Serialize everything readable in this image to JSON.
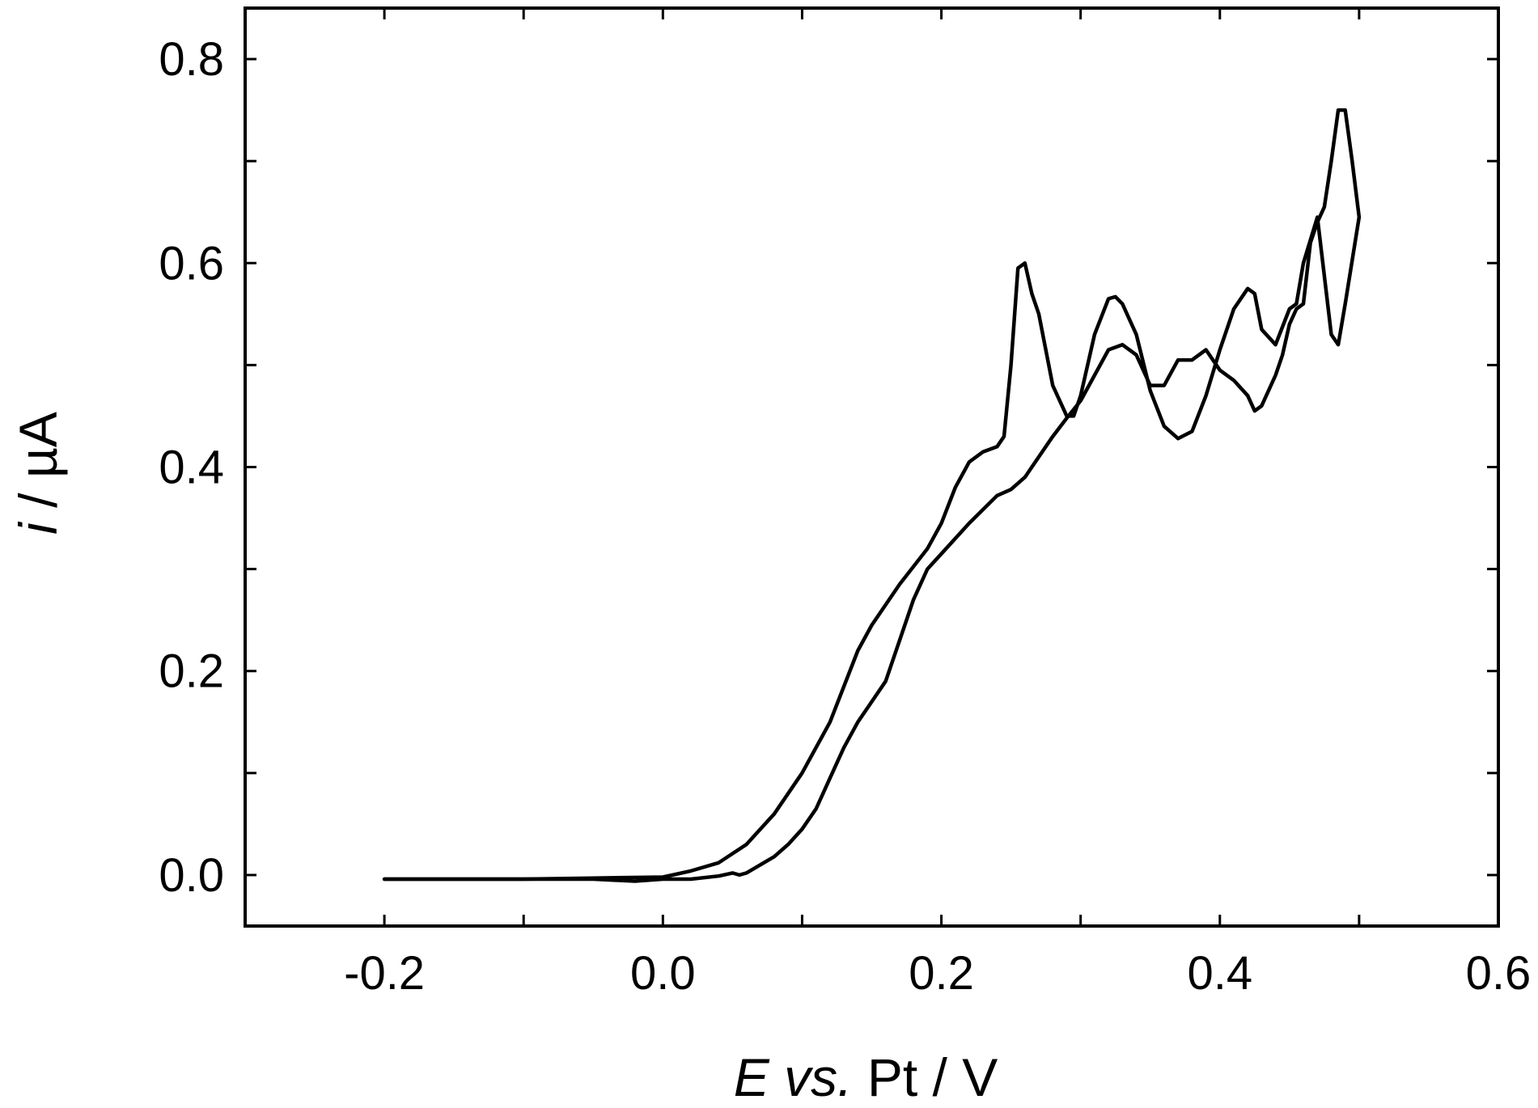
{
  "chart_data": {
    "type": "line",
    "title": "",
    "xlabel": {
      "italic": "E vs.",
      "normal": " Pt / V"
    },
    "ylabel": {
      "italic": "i",
      "normal": " / µA"
    },
    "xlim": [
      -0.3,
      0.6
    ],
    "ylim": [
      -0.05,
      0.85
    ],
    "x_ticks": [
      -0.2,
      0.0,
      0.2,
      0.4,
      0.6
    ],
    "x_tick_labels": [
      "-0.2",
      "0.0",
      "0.2",
      "0.4",
      "0.6"
    ],
    "x_minor_ticks": [
      -0.3,
      -0.1,
      0.1,
      0.3,
      0.5
    ],
    "y_ticks": [
      0.0,
      0.2,
      0.4,
      0.6,
      0.8
    ],
    "y_tick_labels": [
      "0.0",
      "0.2",
      "0.4",
      "0.6",
      "0.8"
    ],
    "y_minor_ticks": [
      0.1,
      0.3,
      0.5,
      0.7
    ],
    "grid": false,
    "line_color": "#000000",
    "series": [
      {
        "x": [
          -0.2,
          -0.15,
          -0.1,
          -0.05,
          0.0,
          0.02,
          0.04,
          0.06,
          0.08,
          0.1,
          0.12,
          0.14,
          0.15,
          0.17,
          0.19,
          0.2,
          0.21,
          0.22,
          0.23,
          0.24,
          0.245,
          0.25,
          0.255,
          0.26,
          0.265,
          0.27,
          0.28,
          0.29,
          0.295,
          0.3,
          0.31,
          0.32,
          0.325,
          0.33,
          0.34,
          0.35,
          0.36,
          0.37,
          0.38,
          0.39,
          0.4,
          0.41,
          0.42,
          0.425,
          0.43,
          0.44,
          0.45,
          0.455,
          0.46,
          0.47,
          0.48,
          0.485,
          0.49,
          0.5
        ],
        "y": [
          -0.004,
          -0.004,
          -0.004,
          -0.003,
          -0.002,
          0.004,
          0.012,
          0.03,
          0.06,
          0.1,
          0.15,
          0.22,
          0.245,
          0.285,
          0.32,
          0.345,
          0.38,
          0.405,
          0.415,
          0.42,
          0.43,
          0.5,
          0.595,
          0.6,
          0.57,
          0.55,
          0.48,
          0.45,
          0.45,
          0.47,
          0.53,
          0.565,
          0.567,
          0.56,
          0.53,
          0.475,
          0.44,
          0.428,
          0.435,
          0.47,
          0.515,
          0.555,
          0.575,
          0.57,
          0.535,
          0.52,
          0.555,
          0.56,
          0.6,
          0.645,
          0.53,
          0.52,
          0.56,
          0.645
        ]
      },
      {
        "x": [
          0.5,
          0.495,
          0.49,
          0.485,
          0.48,
          0.475,
          0.47,
          0.465,
          0.46,
          0.455,
          0.45,
          0.445,
          0.44,
          0.43,
          0.425,
          0.42,
          0.41,
          0.4,
          0.39,
          0.38,
          0.37,
          0.36,
          0.35,
          0.34,
          0.33,
          0.32,
          0.31,
          0.3,
          0.29,
          0.28,
          0.27,
          0.26,
          0.25,
          0.24,
          0.22,
          0.2,
          0.19,
          0.18,
          0.17,
          0.16,
          0.15,
          0.14,
          0.13,
          0.12,
          0.11,
          0.1,
          0.09,
          0.08,
          0.07,
          0.06,
          0.055,
          0.05,
          0.04,
          0.02,
          0.0,
          -0.02,
          -0.05,
          -0.1,
          -0.15,
          -0.2
        ],
        "y": [
          0.645,
          0.7,
          0.75,
          0.75,
          0.7,
          0.655,
          0.64,
          0.62,
          0.56,
          0.555,
          0.54,
          0.51,
          0.49,
          0.46,
          0.455,
          0.47,
          0.485,
          0.495,
          0.515,
          0.505,
          0.505,
          0.48,
          0.48,
          0.51,
          0.52,
          0.515,
          0.49,
          0.465,
          0.448,
          0.43,
          0.41,
          0.39,
          0.378,
          0.372,
          0.345,
          0.315,
          0.3,
          0.27,
          0.23,
          0.19,
          0.17,
          0.15,
          0.125,
          0.095,
          0.065,
          0.045,
          0.03,
          0.018,
          0.01,
          0.002,
          0.0,
          0.002,
          -0.001,
          -0.004,
          -0.004,
          -0.006,
          -0.004,
          -0.004,
          -0.004,
          -0.004
        ]
      }
    ]
  }
}
